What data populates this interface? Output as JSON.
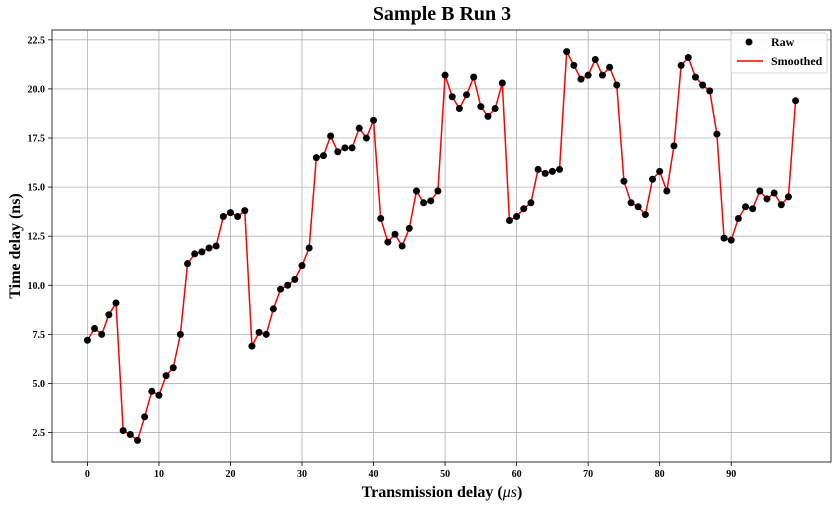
{
  "chart_data": {
    "type": "line",
    "title": "Sample B Run 3",
    "xlabel": "Transmission delay (",
    "xlabel_unit": "μs",
    "xlabel_suffix": ")",
    "ylabel": "Time delay (ns)",
    "xlim": [
      -4.95,
      103.95
    ],
    "ylim": [
      1.0,
      23.0
    ],
    "xticks": [
      0,
      10,
      20,
      30,
      40,
      50,
      60,
      70,
      80,
      90
    ],
    "xtick_labels": [
      "0",
      "10",
      "20",
      "30",
      "40",
      "50",
      "60",
      "70",
      "80",
      "90"
    ],
    "yticks": [
      2.5,
      5.0,
      7.5,
      10.0,
      12.5,
      15.0,
      17.5,
      20.0,
      22.5
    ],
    "ytick_labels": [
      "2.5",
      "5.0",
      "7.5",
      "10.0",
      "12.5",
      "15.0",
      "17.5",
      "20.0",
      "22.5"
    ],
    "grid": true,
    "legend_position": "top-right",
    "series": [
      {
        "name": "Raw",
        "kind": "scatter",
        "color": "#000000"
      },
      {
        "name": "Smoothed",
        "kind": "line",
        "color": "#ff0000"
      }
    ],
    "x": [
      0,
      1,
      2,
      3,
      4,
      5,
      6,
      7,
      8,
      9,
      10,
      11,
      12,
      13,
      14,
      15,
      16,
      17,
      18,
      19,
      20,
      21,
      22,
      23,
      24,
      25,
      26,
      27,
      28,
      29,
      30,
      31,
      32,
      33,
      34,
      35,
      36,
      37,
      38,
      39,
      40,
      41,
      42,
      43,
      44,
      45,
      46,
      47,
      48,
      49,
      50,
      51,
      52,
      53,
      54,
      55,
      56,
      57,
      58,
      59,
      60,
      61,
      62,
      63,
      64,
      65,
      66,
      67,
      68,
      69,
      70,
      71,
      72,
      73,
      74,
      75,
      76,
      77,
      78,
      79,
      80,
      81,
      82,
      83,
      84,
      85,
      86,
      87,
      88,
      89,
      90,
      91,
      92,
      93,
      94,
      95,
      96,
      97,
      98,
      99
    ],
    "y": [
      7.2,
      7.8,
      7.5,
      8.5,
      9.1,
      2.6,
      2.4,
      2.1,
      3.3,
      4.6,
      4.4,
      5.4,
      5.8,
      7.5,
      11.1,
      11.6,
      11.7,
      11.9,
      12.0,
      13.5,
      13.7,
      13.5,
      13.8,
      6.9,
      7.6,
      7.5,
      8.8,
      9.8,
      10.0,
      10.3,
      11.0,
      11.9,
      16.5,
      16.6,
      17.6,
      16.8,
      17.0,
      17.0,
      18.0,
      17.5,
      18.4,
      13.4,
      12.2,
      12.6,
      12.0,
      12.9,
      14.8,
      14.2,
      14.3,
      14.8,
      20.7,
      19.6,
      19.0,
      19.7,
      20.6,
      19.1,
      18.6,
      19.0,
      20.3,
      13.3,
      13.5,
      13.9,
      14.2,
      15.9,
      15.7,
      15.8,
      15.9,
      21.9,
      21.2,
      20.5,
      20.7,
      21.5,
      20.7,
      21.1,
      20.2,
      15.3,
      14.2,
      14.0,
      13.6,
      15.4,
      15.8,
      14.8,
      17.1,
      21.2,
      21.6,
      20.6,
      20.2,
      19.9,
      17.7,
      12.4,
      12.3,
      13.4,
      14.0,
      13.9,
      14.8,
      14.4,
      14.7,
      14.1,
      14.5,
      19.4
    ]
  }
}
